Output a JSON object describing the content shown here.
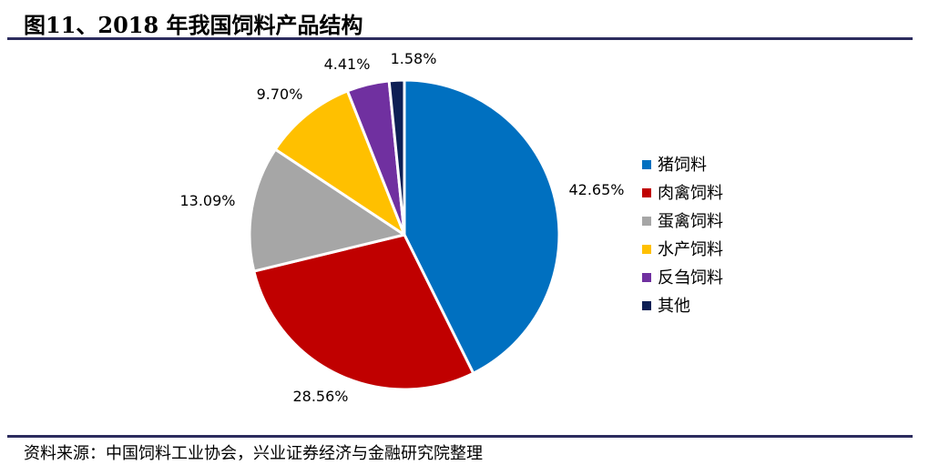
{
  "header": {
    "title": "图11、2018 年我国饲料产品结构"
  },
  "footer": {
    "source": "资料来源：中国饲料工业协会，兴业证券经济与金融研究院整理"
  },
  "chart_data": {
    "type": "pie",
    "categories": [
      "猪饲料",
      "肉禽饲料",
      "蛋禽饲料",
      "水产饲料",
      "反刍饲料",
      "其他"
    ],
    "values": [
      42.65,
      28.56,
      13.09,
      9.7,
      4.41,
      1.58
    ],
    "value_labels": [
      "42.65%",
      "28.56%",
      "13.09%",
      "9.70%",
      "4.41%",
      "1.58%"
    ],
    "colors": [
      "#0070C0",
      "#C00000",
      "#A6A6A6",
      "#FFC000",
      "#7030A0",
      "#0D1F54"
    ],
    "start": "12 o'clock",
    "direction": "clockwise",
    "legend_position": "right"
  }
}
